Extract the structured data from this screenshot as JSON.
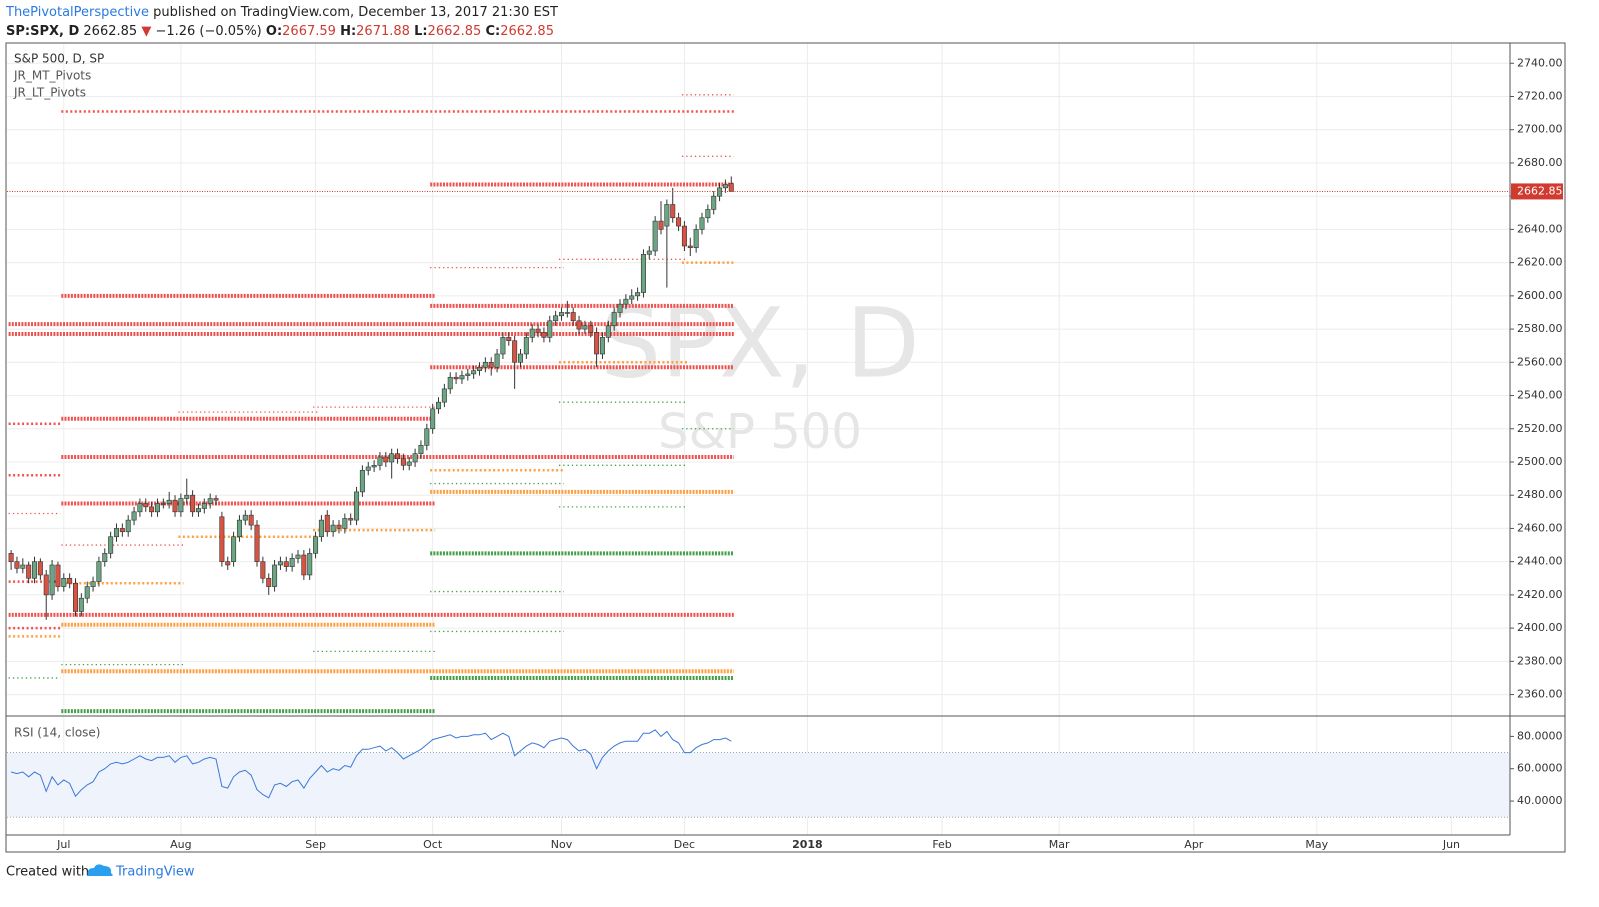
{
  "header": {
    "author": "ThePivotalPerspective",
    "published": "published on TradingView.com, December 13, 2017 21:30 EST",
    "symbol": "SP:SPX, D",
    "arrow": "▼",
    "change": "−1.26 (−0.05%)",
    "o": "O:",
    "h": "H:",
    "l": "L:",
    "c": "C:"
  },
  "legend": [
    "S&P 500, D, SP",
    "JR_MT_Pivots",
    "JR_LT_Pivots"
  ],
  "watermark": {
    "title": "SPX, D",
    "subtitle": "S&P 500"
  },
  "footer": {
    "created": "Created with",
    "brand": "TradingView"
  },
  "chart_data": {
    "type": "candlestick",
    "up_color": "#6ba583",
    "down_color": "#d75442",
    "wick_color": "#333333",
    "price_line_color": "#d03a2f",
    "candles": [
      [
        2445,
        2447,
        2435,
        2440
      ],
      [
        2440,
        2443,
        2433,
        2436
      ],
      [
        2436,
        2442,
        2433,
        2438
      ],
      [
        2438,
        2440,
        2427,
        2430
      ],
      [
        2430,
        2443,
        2427,
        2440
      ],
      [
        2440,
        2442,
        2429,
        2432
      ],
      [
        2432,
        2435,
        2405,
        2420
      ],
      [
        2420,
        2441,
        2417,
        2438
      ],
      [
        2438,
        2440,
        2422,
        2425
      ],
      [
        2425,
        2433,
        2422,
        2430
      ],
      [
        2430,
        2433,
        2424,
        2427
      ],
      [
        2427,
        2430,
        2407,
        2410
      ],
      [
        2410,
        2421,
        2407,
        2418
      ],
      [
        2418,
        2428,
        2415,
        2425
      ],
      [
        2425,
        2431,
        2422,
        2428
      ],
      [
        2428,
        2443,
        2425,
        2440
      ],
      [
        2440,
        2448,
        2437,
        2445
      ],
      [
        2445,
        2458,
        2442,
        2455
      ],
      [
        2455,
        2463,
        2452,
        2460
      ],
      [
        2460,
        2463,
        2455,
        2458
      ],
      [
        2458,
        2468,
        2455,
        2465
      ],
      [
        2465,
        2473,
        2462,
        2470
      ],
      [
        2470,
        2478,
        2467,
        2475
      ],
      [
        2475,
        2478,
        2470,
        2473
      ],
      [
        2473,
        2476,
        2467,
        2470
      ],
      [
        2470,
        2478,
        2467,
        2475
      ],
      [
        2475,
        2478,
        2472,
        2475
      ],
      [
        2475,
        2482,
        2472,
        2477
      ],
      [
        2477,
        2480,
        2467,
        2470
      ],
      [
        2470,
        2481,
        2467,
        2478
      ],
      [
        2478,
        2490,
        2475,
        2480
      ],
      [
        2480,
        2483,
        2467,
        2470
      ],
      [
        2470,
        2475,
        2467,
        2472
      ],
      [
        2472,
        2478,
        2469,
        2475
      ],
      [
        2475,
        2481,
        2472,
        2478
      ],
      [
        2478,
        2480,
        2474,
        2477
      ],
      [
        2467,
        2470,
        2437,
        2440
      ],
      [
        2440,
        2443,
        2435,
        2438
      ],
      [
        2440,
        2458,
        2437,
        2455
      ],
      [
        2455,
        2468,
        2452,
        2465
      ],
      [
        2465,
        2471,
        2462,
        2468
      ],
      [
        2468,
        2471,
        2459,
        2462
      ],
      [
        2462,
        2465,
        2437,
        2440
      ],
      [
        2440,
        2443,
        2427,
        2430
      ],
      [
        2430,
        2433,
        2420,
        2425
      ],
      [
        2425,
        2441,
        2422,
        2438
      ],
      [
        2438,
        2443,
        2435,
        2440
      ],
      [
        2440,
        2443,
        2434,
        2437
      ],
      [
        2437,
        2445,
        2434,
        2442
      ],
      [
        2442,
        2447,
        2439,
        2444
      ],
      [
        2444,
        2447,
        2429,
        2432
      ],
      [
        2432,
        2448,
        2429,
        2445
      ],
      [
        2445,
        2458,
        2442,
        2455
      ],
      [
        2455,
        2468,
        2452,
        2465
      ],
      [
        2468,
        2471,
        2455,
        2458
      ],
      [
        2458,
        2465,
        2455,
        2462
      ],
      [
        2462,
        2465,
        2457,
        2460
      ],
      [
        2460,
        2469,
        2457,
        2466
      ],
      [
        2466,
        2469,
        2462,
        2465
      ],
      [
        2465,
        2485,
        2462,
        2482
      ],
      [
        2482,
        2498,
        2479,
        2495
      ],
      [
        2495,
        2500,
        2492,
        2497
      ],
      [
        2497,
        2501,
        2494,
        2498
      ],
      [
        2498,
        2506,
        2495,
        2503
      ],
      [
        2503,
        2506,
        2497,
        2500
      ],
      [
        2500,
        2508,
        2490,
        2505
      ],
      [
        2505,
        2508,
        2499,
        2502
      ],
      [
        2502,
        2505,
        2495,
        2498
      ],
      [
        2498,
        2503,
        2495,
        2500
      ],
      [
        2500,
        2508,
        2497,
        2505
      ],
      [
        2505,
        2513,
        2502,
        2510
      ],
      [
        2510,
        2523,
        2507,
        2520
      ],
      [
        2520,
        2535,
        2517,
        2532
      ],
      [
        2532,
        2539,
        2529,
        2536
      ],
      [
        2536,
        2547,
        2533,
        2544
      ],
      [
        2544,
        2554,
        2541,
        2551
      ],
      [
        2551,
        2554,
        2547,
        2550
      ],
      [
        2550,
        2555,
        2547,
        2552
      ],
      [
        2552,
        2556,
        2549,
        2553
      ],
      [
        2553,
        2558,
        2550,
        2555
      ],
      [
        2555,
        2560,
        2552,
        2557
      ],
      [
        2557,
        2563,
        2554,
        2560
      ],
      [
        2560,
        2563,
        2552,
        2557
      ],
      [
        2557,
        2568,
        2554,
        2565
      ],
      [
        2565,
        2578,
        2562,
        2575
      ],
      [
        2575,
        2578,
        2570,
        2573
      ],
      [
        2573,
        2576,
        2544,
        2560
      ],
      [
        2560,
        2568,
        2557,
        2565
      ],
      [
        2565,
        2578,
        2562,
        2575
      ],
      [
        2575,
        2583,
        2572,
        2580
      ],
      [
        2580,
        2583,
        2575,
        2578
      ],
      [
        2578,
        2581,
        2572,
        2575
      ],
      [
        2575,
        2588,
        2572,
        2585
      ],
      [
        2585,
        2591,
        2582,
        2588
      ],
      [
        2588,
        2593,
        2585,
        2590
      ],
      [
        2590,
        2597,
        2587,
        2590
      ],
      [
        2590,
        2593,
        2582,
        2585
      ],
      [
        2585,
        2588,
        2577,
        2580
      ],
      [
        2580,
        2585,
        2577,
        2582
      ],
      [
        2582,
        2585,
        2575,
        2578
      ],
      [
        2578,
        2581,
        2557,
        2565
      ],
      [
        2565,
        2578,
        2562,
        2575
      ],
      [
        2575,
        2585,
        2572,
        2582
      ],
      [
        2582,
        2593,
        2579,
        2590
      ],
      [
        2590,
        2598,
        2587,
        2595
      ],
      [
        2595,
        2601,
        2592,
        2598
      ],
      [
        2598,
        2604,
        2595,
        2600
      ],
      [
        2600,
        2605,
        2597,
        2602
      ],
      [
        2602,
        2628,
        2599,
        2625
      ],
      [
        2625,
        2630,
        2622,
        2627
      ],
      [
        2627,
        2648,
        2624,
        2645
      ],
      [
        2645,
        2657,
        2637,
        2640
      ],
      [
        2642,
        2658,
        2605,
        2655
      ],
      [
        2655,
        2665,
        2644,
        2647
      ],
      [
        2647,
        2650,
        2639,
        2642
      ],
      [
        2642,
        2645,
        2627,
        2630
      ],
      [
        2630,
        2635,
        2624,
        2629
      ],
      [
        2629,
        2643,
        2626,
        2640
      ],
      [
        2640,
        2650,
        2637,
        2647
      ],
      [
        2647,
        2655,
        2644,
        2652
      ],
      [
        2652,
        2663,
        2649,
        2660
      ],
      [
        2660,
        2668,
        2657,
        2665
      ],
      [
        2665,
        2670,
        2662,
        2667
      ],
      [
        2667.59,
        2671.88,
        2662.85,
        2662.85
      ]
    ],
    "pivots": [
      {
        "level": 2711,
        "from": 9,
        "to": 123,
        "color": "#ef5350",
        "style": "medium"
      },
      {
        "level": 2721,
        "from": 115,
        "to": 123,
        "color": "#ef5350",
        "style": "dot"
      },
      {
        "level": 2684,
        "from": 115,
        "to": 123,
        "color": "#ef5350",
        "style": "dot"
      },
      {
        "level": 2667,
        "from": 72,
        "to": 123,
        "color": "#ef5350",
        "style": "heavy"
      },
      {
        "level": 2617,
        "from": 72,
        "to": 94,
        "color": "#ef5350",
        "style": "dot"
      },
      {
        "level": 2622,
        "from": 94,
        "to": 115,
        "color": "#ef5350",
        "style": "dot"
      },
      {
        "level": 2620,
        "from": 115,
        "to": 123,
        "color": "#ffa040",
        "style": "medium"
      },
      {
        "level": 2600,
        "from": 9,
        "to": 72,
        "color": "#ef5350",
        "style": "heavy"
      },
      {
        "level": 2594,
        "from": 72,
        "to": 123,
        "color": "#ef5350",
        "style": "heavy"
      },
      {
        "level": 2583,
        "from": 0,
        "to": 123,
        "color": "#ef5350",
        "style": "heavy"
      },
      {
        "level": 2577,
        "from": 0,
        "to": 123,
        "color": "#ef5350",
        "style": "heavy"
      },
      {
        "level": 2560,
        "from": 94,
        "to": 115,
        "color": "#ffa040",
        "style": "medium"
      },
      {
        "level": 2557,
        "from": 72,
        "to": 123,
        "color": "#ef5350",
        "style": "heavy"
      },
      {
        "level": 2536,
        "from": 94,
        "to": 115,
        "color": "#43a047",
        "style": "dot"
      },
      {
        "level": 2533,
        "from": 52,
        "to": 72,
        "color": "#ef5350",
        "style": "dot"
      },
      {
        "level": 2530,
        "from": 29,
        "to": 52,
        "color": "#ef5350",
        "style": "dot"
      },
      {
        "level": 2526,
        "from": 9,
        "to": 72,
        "color": "#ef5350",
        "style": "heavy"
      },
      {
        "level": 2523,
        "from": 0,
        "to": 8,
        "color": "#ef5350",
        "style": "medium"
      },
      {
        "level": 2520,
        "from": 115,
        "to": 123,
        "color": "#43a047",
        "style": "dot"
      },
      {
        "level": 2503,
        "from": 9,
        "to": 123,
        "color": "#ef5350",
        "style": "heavy"
      },
      {
        "level": 2498,
        "from": 94,
        "to": 115,
        "color": "#43a047",
        "style": "dot"
      },
      {
        "level": 2495,
        "from": 72,
        "to": 94,
        "color": "#ffa040",
        "style": "medium"
      },
      {
        "level": 2492,
        "from": 0,
        "to": 8,
        "color": "#ef5350",
        "style": "medium"
      },
      {
        "level": 2487,
        "from": 72,
        "to": 94,
        "color": "#43a047",
        "style": "dot"
      },
      {
        "level": 2482,
        "from": 72,
        "to": 123,
        "color": "#ffa040",
        "style": "heavy"
      },
      {
        "level": 2475,
        "from": 9,
        "to": 72,
        "color": "#ef5350",
        "style": "heavy"
      },
      {
        "level": 2473,
        "from": 94,
        "to": 115,
        "color": "#43a047",
        "style": "dot"
      },
      {
        "level": 2469,
        "from": 0,
        "to": 8,
        "color": "#ef5350",
        "style": "dot"
      },
      {
        "level": 2459,
        "from": 52,
        "to": 72,
        "color": "#ffa040",
        "style": "medium"
      },
      {
        "level": 2455,
        "from": 29,
        "to": 52,
        "color": "#ffa040",
        "style": "medium"
      },
      {
        "level": 2450,
        "from": 9,
        "to": 29,
        "color": "#ef5350",
        "style": "dot"
      },
      {
        "level": 2445,
        "from": 72,
        "to": 123,
        "color": "#43a047",
        "style": "heavy"
      },
      {
        "level": 2428,
        "from": 0,
        "to": 8,
        "color": "#ef5350",
        "style": "medium"
      },
      {
        "level": 2427,
        "from": 9,
        "to": 29,
        "color": "#ffa040",
        "style": "medium"
      },
      {
        "level": 2422,
        "from": 72,
        "to": 94,
        "color": "#43a047",
        "style": "dot"
      },
      {
        "level": 2408,
        "from": 0,
        "to": 123,
        "color": "#ef5350",
        "style": "heavy"
      },
      {
        "level": 2402,
        "from": 9,
        "to": 72,
        "color": "#ffa040",
        "style": "heavy"
      },
      {
        "level": 2400,
        "from": 0,
        "to": 8,
        "color": "#ef5350",
        "style": "medium"
      },
      {
        "level": 2398,
        "from": 72,
        "to": 94,
        "color": "#43a047",
        "style": "dot"
      },
      {
        "level": 2395,
        "from": 0,
        "to": 8,
        "color": "#ffa040",
        "style": "medium"
      },
      {
        "level": 2386,
        "from": 52,
        "to": 72,
        "color": "#43a047",
        "style": "dot"
      },
      {
        "level": 2378,
        "from": 9,
        "to": 29,
        "color": "#43a047",
        "style": "dot"
      },
      {
        "level": 2374,
        "from": 9,
        "to": 123,
        "color": "#ffa040",
        "style": "heavy"
      },
      {
        "level": 2370,
        "from": 72,
        "to": 123,
        "color": "#43a047",
        "style": "heavy"
      },
      {
        "level": 2370,
        "from": 0,
        "to": 8,
        "color": "#43a047",
        "style": "dot"
      },
      {
        "level": 2350,
        "from": 9,
        "to": 72,
        "color": "#43a047",
        "style": "heavy"
      }
    ],
    "ylim": [
      2347.7,
      2752.2
    ],
    "yticks": [
      {
        "value": 2360,
        "label": "2360.00"
      },
      {
        "value": 2380,
        "label": "2380.00"
      },
      {
        "value": 2400,
        "label": "2400.00"
      },
      {
        "value": 2420,
        "label": "2420.00"
      },
      {
        "value": 2440,
        "label": "2440.00"
      },
      {
        "value": 2460,
        "label": "2460.00"
      },
      {
        "value": 2480,
        "label": "2480.00"
      },
      {
        "value": 2500,
        "label": "2500.00"
      },
      {
        "value": 2520,
        "label": "2520.00"
      },
      {
        "value": 2540,
        "label": "2540.00"
      },
      {
        "value": 2560,
        "label": "2560.00"
      },
      {
        "value": 2580,
        "label": "2580.00"
      },
      {
        "value": 2600,
        "label": "2600.00"
      },
      {
        "value": 2620,
        "label": "2620.00"
      },
      {
        "value": 2640,
        "label": "2640.00"
      },
      {
        "value": 2660,
        "label": "2660.00"
      },
      {
        "value": 2680,
        "label": "2680.00"
      },
      {
        "value": 2700,
        "label": "2700.00"
      },
      {
        "value": 2720,
        "label": "2720.00"
      },
      {
        "value": 2740,
        "label": "2740.00"
      }
    ],
    "xlim": [
      -0.7,
      256
    ],
    "xticks": [
      {
        "value": 9,
        "label": "Jul"
      },
      {
        "value": 29,
        "label": "Aug"
      },
      {
        "value": 52,
        "label": "Sep"
      },
      {
        "value": 72,
        "label": "Oct"
      },
      {
        "value": 94,
        "label": "Nov"
      },
      {
        "value": 115,
        "label": "Dec"
      },
      {
        "value": 136,
        "label": "2018"
      },
      {
        "value": 159,
        "label": "Feb"
      },
      {
        "value": 179,
        "label": "Mar"
      },
      {
        "value": 202,
        "label": "Apr"
      },
      {
        "value": 223,
        "label": "May"
      },
      {
        "value": 246,
        "label": "Jun"
      }
    ],
    "grid": true,
    "rsi": {
      "title": "RSI (14, close)",
      "color": "#3c78d8",
      "band": [
        30,
        70
      ],
      "band_color": "#eef3fc",
      "ylim": [
        19,
        92
      ],
      "yticks": [
        {
          "value": 80,
          "label": "80.0000"
        },
        {
          "value": 60,
          "label": "60.0000"
        },
        {
          "value": 40,
          "label": "40.0000"
        }
      ],
      "values": [
        58,
        57,
        58,
        55,
        58,
        56,
        46,
        55,
        50,
        53,
        51,
        43,
        47,
        50,
        52,
        58,
        60,
        63,
        64,
        63,
        64,
        66,
        68,
        66,
        65,
        67,
        67,
        68,
        64,
        67,
        68,
        63,
        64,
        66,
        67,
        66,
        49,
        48,
        55,
        58,
        59,
        56,
        47,
        44,
        42,
        50,
        51,
        49,
        52,
        53,
        48,
        54,
        58,
        62,
        58,
        60,
        59,
        62,
        61,
        68,
        72,
        72,
        73,
        74,
        71,
        73,
        70,
        66,
        68,
        70,
        72,
        75,
        78,
        79,
        80,
        81,
        79,
        80,
        80,
        81,
        81,
        82,
        78,
        80,
        82,
        80,
        68,
        71,
        74,
        76,
        75,
        73,
        77,
        78,
        79,
        78,
        74,
        71,
        72,
        69,
        60,
        67,
        71,
        74,
        76,
        77,
        77,
        77,
        82,
        82,
        84,
        80,
        83,
        78,
        76,
        70,
        70,
        73,
        75,
        76,
        78,
        78,
        79,
        77
      ]
    }
  }
}
